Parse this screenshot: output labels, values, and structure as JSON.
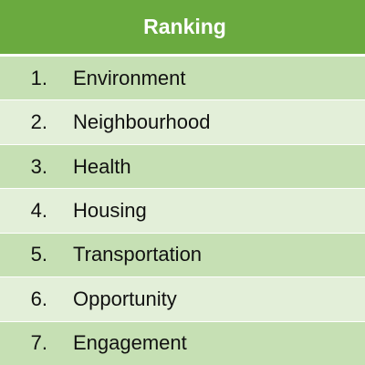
{
  "table": {
    "header": "Ranking",
    "rows": [
      {
        "number": "1.",
        "label": "Environment"
      },
      {
        "number": "2.",
        "label": "Neighbourhood"
      },
      {
        "number": "3.",
        "label": "Health"
      },
      {
        "number": "4.",
        "label": "Housing"
      },
      {
        "number": "5.",
        "label": "Transportation"
      },
      {
        "number": "6.",
        "label": "Opportunity"
      },
      {
        "number": "7.",
        "label": "Engagement"
      }
    ]
  },
  "colors": {
    "header_bg": "#6aaa3f",
    "row_dark": "#c6e0b4",
    "row_light": "#e3efd9",
    "header_text": "#ffffff"
  }
}
